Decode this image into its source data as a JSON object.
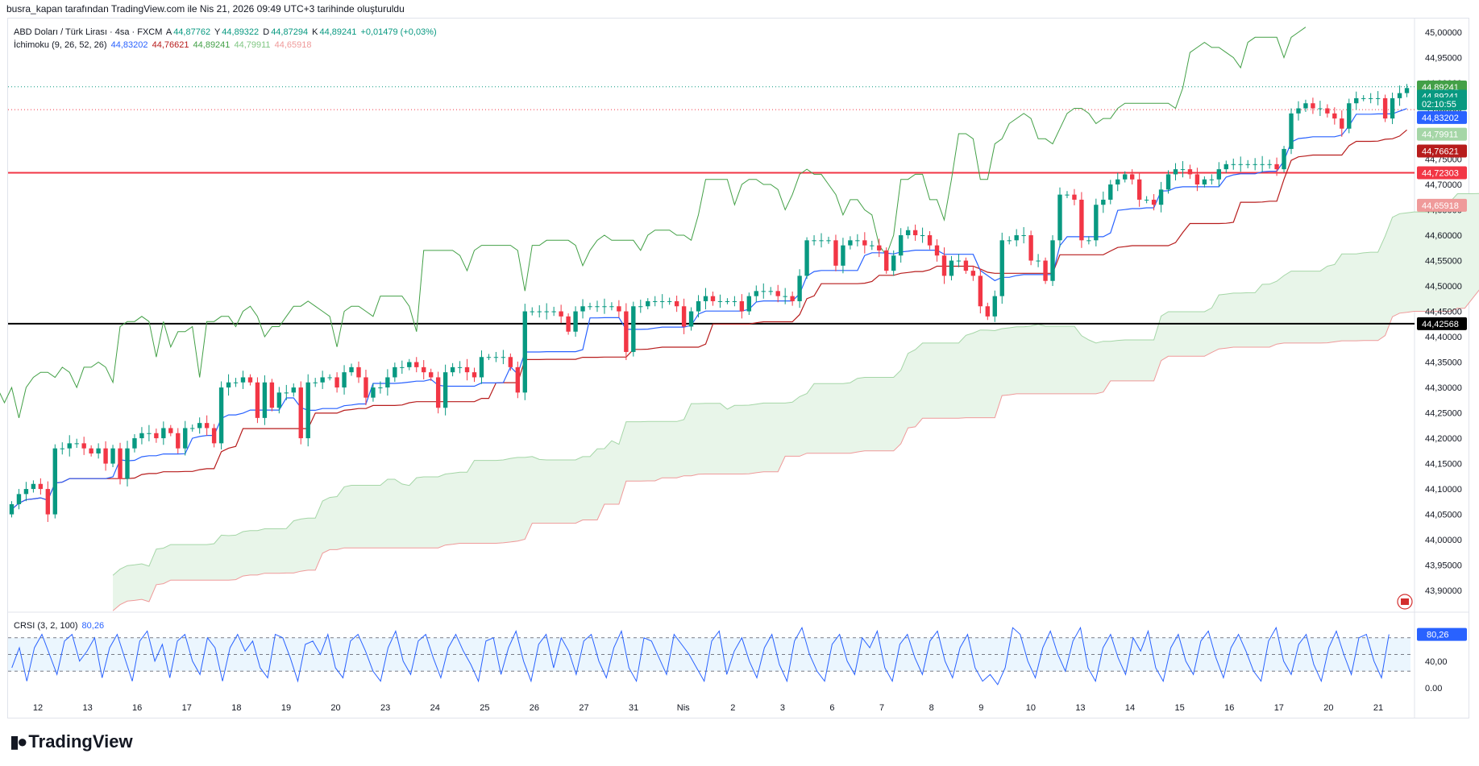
{
  "header": {
    "attribution": "busra_kapan tarafından TradingView.com ile Nis 21, 2026 09:49 UTC+3 tarihinde oluşturuldu"
  },
  "legend": {
    "symbol": "ABD Doları / Türk Lirası · 4sa · FXCM",
    "open_label": "A",
    "open": "44,87762",
    "high_label": "Y",
    "high": "44,89322",
    "low_label": "D",
    "low": "44,87294",
    "close_label": "K",
    "close": "44,89241",
    "change": "+0,01479 (+0,03%)",
    "ichimoku_label": "İchimoku (9, 26, 52, 26)",
    "ichimoku_values": [
      "44,83202",
      "44,76621",
      "44,89241",
      "44,79911",
      "44,65918"
    ],
    "crsi_label": "CRSI (3, 2, 100)",
    "crsi_value": "80,26"
  },
  "branding": {
    "logo_text": "TradingView",
    "icon": "tradingview-logo-icon"
  },
  "colors": {
    "up": "#089981",
    "down": "#f23645",
    "tenkan": "#2962ff",
    "kijun": "#b71c1c",
    "chikou": "#43a047",
    "span_a": "#a5d6a7",
    "span_b": "#ef9a9a",
    "cloud": "#e8f5e9",
    "crsi": "#2962ff",
    "resistance": "#f23645",
    "support": "#000000"
  },
  "chart_data": [
    {
      "type": "candlestick",
      "panel": "main",
      "ylim": [
        43.87,
        45.0
      ],
      "yticks": [
        "45,00000",
        "44,95000",
        "44,90000",
        "44,85000",
        "44,80000",
        "44,75000",
        "44,70000",
        "44,65000",
        "44,60000",
        "44,55000",
        "44,50000",
        "44,45000",
        "44,40000",
        "44,35000",
        "44,30000",
        "44,25000",
        "44,20000",
        "44,15000",
        "44,10000",
        "44,05000",
        "44,00000",
        "43,95000",
        "43,90000"
      ],
      "xticks": [
        "12",
        "13",
        "16",
        "17",
        "18",
        "19",
        "20",
        "23",
        "24",
        "25",
        "26",
        "27",
        "31",
        "Nis",
        "2",
        "3",
        "6",
        "7",
        "8",
        "9",
        "10",
        "13",
        "14",
        "15",
        "16",
        "17",
        "20",
        "21"
      ],
      "price_labels": [
        {
          "text": "44,89241",
          "value": 44.892,
          "color": "#43a047"
        },
        {
          "text": "44,89241",
          "value": 44.874,
          "color": "#089981"
        },
        {
          "text": "02:10:55",
          "value": 44.859,
          "color": "#089981"
        },
        {
          "text": "44,83202",
          "value": 44.832,
          "color": "#2962ff"
        },
        {
          "text": "44,79911",
          "value": 44.799,
          "color": "#a5d6a7"
        },
        {
          "text": "44,76621",
          "value": 44.766,
          "color": "#b71c1c"
        },
        {
          "text": "44,72303",
          "value": 44.723,
          "color": "#f23645"
        },
        {
          "text": "44,65918",
          "value": 44.659,
          "color": "#ef9a9a"
        },
        {
          "text": "44,42568",
          "value": 44.4257,
          "color": "#000000"
        }
      ],
      "horizontal_lines": [
        {
          "value": 44.72303,
          "style": "solid",
          "color": "#f23645"
        },
        {
          "value": 44.42568,
          "style": "solid",
          "color": "#000000"
        },
        {
          "value": 44.89241,
          "style": "dotted",
          "color": "#089981"
        },
        {
          "value": 44.8475,
          "style": "dotted",
          "color": "#f23645"
        }
      ],
      "close": [
        44.07,
        44.09,
        44.1,
        44.11,
        44.1,
        44.05,
        44.18,
        44.18,
        44.19,
        44.19,
        44.18,
        44.17,
        44.18,
        44.15,
        44.18,
        44.12,
        44.18,
        44.2,
        44.21,
        44.21,
        44.2,
        44.22,
        44.21,
        44.18,
        44.22,
        44.22,
        44.23,
        44.22,
        44.19,
        44.3,
        44.31,
        44.31,
        44.32,
        44.31,
        44.24,
        44.31,
        44.26,
        44.29,
        44.29,
        44.3,
        44.2,
        44.31,
        44.31,
        44.32,
        44.32,
        44.3,
        44.33,
        44.34,
        44.32,
        44.28,
        44.3,
        44.3,
        44.32,
        44.34,
        44.34,
        44.35,
        44.34,
        44.33,
        44.32,
        44.26,
        44.33,
        44.34,
        44.34,
        44.33,
        44.32,
        44.36,
        44.36,
        44.36,
        44.36,
        44.34,
        44.29,
        44.45,
        44.45,
        44.45,
        44.45,
        44.45,
        44.44,
        44.41,
        44.45,
        44.46,
        44.46,
        44.46,
        44.46,
        44.46,
        44.45,
        44.37,
        44.46,
        44.46,
        44.47,
        44.47,
        44.47,
        44.47,
        44.46,
        44.42,
        44.45,
        44.47,
        44.48,
        44.47,
        44.47,
        44.47,
        44.47,
        44.45,
        44.48,
        44.49,
        44.49,
        44.49,
        44.48,
        44.48,
        44.47,
        44.52,
        44.59,
        44.59,
        44.59,
        44.59,
        44.54,
        44.58,
        44.59,
        44.59,
        44.58,
        44.58,
        44.57,
        44.53,
        44.56,
        44.6,
        44.61,
        44.6,
        44.6,
        44.58,
        44.56,
        44.52,
        44.55,
        44.55,
        44.53,
        44.52,
        44.46,
        44.44,
        44.48,
        44.59,
        44.59,
        44.6,
        44.6,
        44.55,
        44.55,
        44.51,
        44.59,
        44.68,
        44.68,
        44.67,
        44.59,
        44.59,
        44.66,
        44.67,
        44.7,
        44.71,
        44.72,
        44.71,
        44.67,
        44.67,
        44.66,
        44.69,
        44.72,
        44.73,
        44.73,
        44.72,
        44.7,
        44.71,
        44.71,
        44.73,
        44.74,
        44.74,
        44.74,
        44.74,
        44.74,
        44.74,
        44.74,
        44.73,
        44.77,
        44.84,
        44.85,
        44.86,
        44.85,
        44.85,
        44.84,
        44.83,
        44.81,
        44.86,
        44.87,
        44.87,
        44.87,
        44.87,
        44.83,
        44.87,
        44.88,
        44.89
      ]
    },
    {
      "type": "line",
      "panel": "oscillator",
      "name": "CRSI (3, 2, 100)",
      "ylim": [
        0,
        100
      ],
      "yticks": [
        "40,00",
        "0.00"
      ],
      "band": [
        25,
        75
      ],
      "values": [
        30,
        60,
        10,
        60,
        80,
        50,
        20,
        70,
        80,
        40,
        55,
        75,
        15,
        60,
        80,
        45,
        10,
        70,
        85,
        40,
        65,
        15,
        70,
        80,
        40,
        20,
        75,
        60,
        10,
        60,
        80,
        55,
        70,
        30,
        15,
        80,
        75,
        45,
        10,
        65,
        70,
        50,
        80,
        30,
        15,
        70,
        80,
        55,
        25,
        10,
        60,
        85,
        40,
        20,
        70,
        80,
        45,
        15,
        60,
        80,
        55,
        35,
        10,
        70,
        75,
        20,
        60,
        85,
        40,
        10,
        65,
        80,
        30,
        75,
        55,
        20,
        70,
        80,
        40,
        15,
        60,
        85,
        30,
        10,
        75,
        70,
        45,
        20,
        80,
        65,
        50,
        30,
        10,
        70,
        85,
        20,
        55,
        75,
        40,
        15,
        60,
        80,
        35,
        10,
        70,
        90,
        50,
        25,
        10,
        65,
        80,
        40,
        20,
        75,
        60,
        85,
        30,
        10,
        65,
        80,
        45,
        20,
        70,
        85,
        40,
        15,
        60,
        80,
        30,
        10,
        20,
        5,
        30,
        90,
        80,
        40,
        15,
        60,
        85,
        50,
        25,
        70,
        90,
        30,
        10,
        60,
        80,
        45,
        20,
        75,
        55,
        85,
        30,
        10,
        60,
        80,
        40,
        20,
        70,
        85,
        45,
        15,
        60,
        80,
        55,
        25,
        10,
        70,
        90,
        40,
        20,
        65,
        80,
        35,
        10,
        60,
        85,
        50,
        20,
        75,
        80,
        40,
        15,
        80
      ]
    }
  ]
}
